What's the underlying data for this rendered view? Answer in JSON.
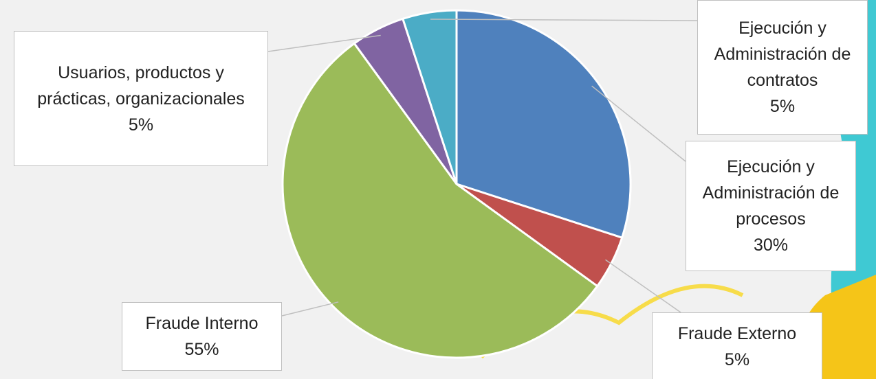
{
  "chart_data": {
    "type": "pie",
    "categories": [
      "Ejecución y Administración de procesos",
      "Fraude Externo",
      "Fraude Interno",
      "Usuarios, productos y prácticas, organizacionales",
      "Ejecución y Administración de contratos"
    ],
    "values": [
      30,
      5,
      55,
      5,
      5
    ],
    "value_labels": [
      "30%",
      "5%",
      "55%",
      "5%",
      "5%"
    ],
    "colors": [
      "#4f81bd",
      "#c0504d",
      "#9bbb59",
      "#8064a2",
      "#4bacc6"
    ]
  }
}
